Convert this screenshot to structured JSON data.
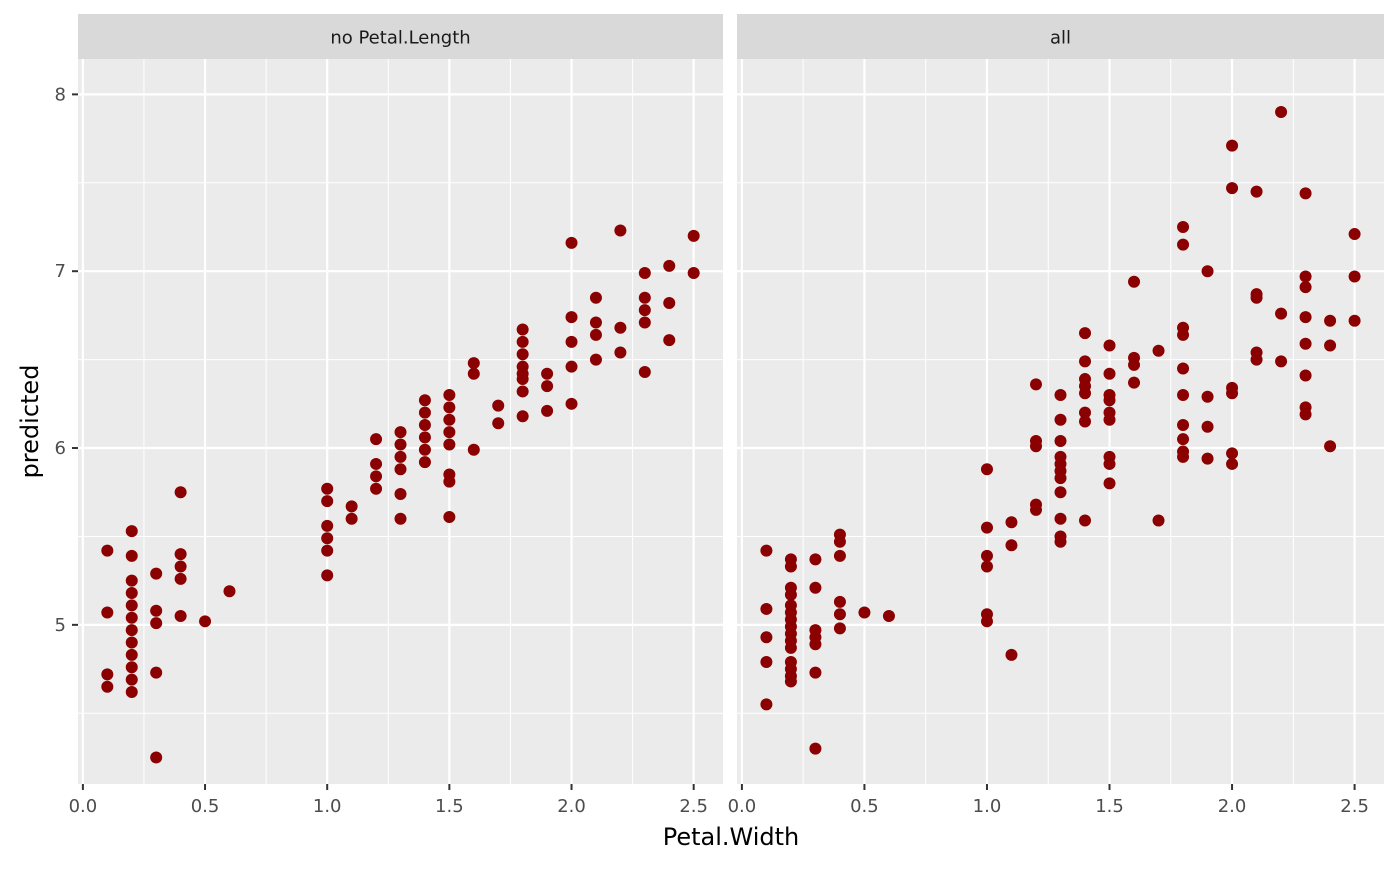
{
  "chart_data": {
    "type": "scatter",
    "xlabel": "Petal.Width",
    "ylabel": "predicted",
    "xlim": [
      -0.02,
      2.62
    ],
    "ylim": [
      4.1,
      8.2
    ],
    "x_ticks": [
      0.0,
      0.5,
      1.0,
      1.5,
      2.0,
      2.5
    ],
    "x_tick_labels": [
      "0.0",
      "0.5",
      "1.0",
      "1.5",
      "2.0",
      "2.5"
    ],
    "y_ticks": [
      5,
      6,
      7,
      8
    ],
    "y_tick_labels": [
      "5",
      "6",
      "7",
      "8"
    ],
    "grid": true,
    "point_color": "#8b0000",
    "panel_background": "#ebebeb",
    "strip_background": "#d9d9d9",
    "panels": [
      {
        "label": "no Petal.Length",
        "points": [
          {
            "x": 0.1,
            "y": 5.42
          },
          {
            "x": 0.1,
            "y": 5.07
          },
          {
            "x": 0.1,
            "y": 4.72
          },
          {
            "x": 0.1,
            "y": 4.65
          },
          {
            "x": 0.2,
            "y": 5.53
          },
          {
            "x": 0.2,
            "y": 5.39
          },
          {
            "x": 0.2,
            "y": 5.25
          },
          {
            "x": 0.2,
            "y": 5.18
          },
          {
            "x": 0.2,
            "y": 5.11
          },
          {
            "x": 0.2,
            "y": 5.04
          },
          {
            "x": 0.2,
            "y": 4.97
          },
          {
            "x": 0.2,
            "y": 4.9
          },
          {
            "x": 0.2,
            "y": 4.83
          },
          {
            "x": 0.2,
            "y": 4.76
          },
          {
            "x": 0.2,
            "y": 4.69
          },
          {
            "x": 0.2,
            "y": 4.62
          },
          {
            "x": 0.3,
            "y": 5.29
          },
          {
            "x": 0.3,
            "y": 5.08
          },
          {
            "x": 0.3,
            "y": 5.01
          },
          {
            "x": 0.3,
            "y": 4.73
          },
          {
            "x": 0.3,
            "y": 4.25
          },
          {
            "x": 0.4,
            "y": 5.75
          },
          {
            "x": 0.4,
            "y": 5.4
          },
          {
            "x": 0.4,
            "y": 5.33
          },
          {
            "x": 0.4,
            "y": 5.26
          },
          {
            "x": 0.4,
            "y": 5.05
          },
          {
            "x": 0.5,
            "y": 5.02
          },
          {
            "x": 0.6,
            "y": 5.19
          },
          {
            "x": 1.0,
            "y": 5.77
          },
          {
            "x": 1.0,
            "y": 5.7
          },
          {
            "x": 1.0,
            "y": 5.56
          },
          {
            "x": 1.0,
            "y": 5.49
          },
          {
            "x": 1.0,
            "y": 5.42
          },
          {
            "x": 1.0,
            "y": 5.28
          },
          {
            "x": 1.1,
            "y": 5.67
          },
          {
            "x": 1.1,
            "y": 5.6
          },
          {
            "x": 1.2,
            "y": 6.05
          },
          {
            "x": 1.2,
            "y": 5.91
          },
          {
            "x": 1.2,
            "y": 5.84
          },
          {
            "x": 1.2,
            "y": 5.77
          },
          {
            "x": 1.3,
            "y": 6.09
          },
          {
            "x": 1.3,
            "y": 6.02
          },
          {
            "x": 1.3,
            "y": 5.95
          },
          {
            "x": 1.3,
            "y": 5.88
          },
          {
            "x": 1.3,
            "y": 5.74
          },
          {
            "x": 1.3,
            "y": 5.6
          },
          {
            "x": 1.4,
            "y": 6.27
          },
          {
            "x": 1.4,
            "y": 6.2
          },
          {
            "x": 1.4,
            "y": 6.13
          },
          {
            "x": 1.4,
            "y": 6.06
          },
          {
            "x": 1.4,
            "y": 5.99
          },
          {
            "x": 1.4,
            "y": 5.92
          },
          {
            "x": 1.5,
            "y": 6.3
          },
          {
            "x": 1.5,
            "y": 6.23
          },
          {
            "x": 1.5,
            "y": 6.16
          },
          {
            "x": 1.5,
            "y": 6.09
          },
          {
            "x": 1.5,
            "y": 6.02
          },
          {
            "x": 1.5,
            "y": 5.85
          },
          {
            "x": 1.5,
            "y": 5.81
          },
          {
            "x": 1.5,
            "y": 5.61
          },
          {
            "x": 1.6,
            "y": 6.48
          },
          {
            "x": 1.6,
            "y": 6.42
          },
          {
            "x": 1.6,
            "y": 5.99
          },
          {
            "x": 1.7,
            "y": 6.24
          },
          {
            "x": 1.7,
            "y": 6.14
          },
          {
            "x": 1.8,
            "y": 6.67
          },
          {
            "x": 1.8,
            "y": 6.6
          },
          {
            "x": 1.8,
            "y": 6.53
          },
          {
            "x": 1.8,
            "y": 6.46
          },
          {
            "x": 1.8,
            "y": 6.42
          },
          {
            "x": 1.8,
            "y": 6.39
          },
          {
            "x": 1.8,
            "y": 6.32
          },
          {
            "x": 1.8,
            "y": 6.18
          },
          {
            "x": 1.9,
            "y": 6.42
          },
          {
            "x": 1.9,
            "y": 6.35
          },
          {
            "x": 1.9,
            "y": 6.21
          },
          {
            "x": 2.0,
            "y": 7.16
          },
          {
            "x": 2.0,
            "y": 6.74
          },
          {
            "x": 2.0,
            "y": 6.6
          },
          {
            "x": 2.0,
            "y": 6.46
          },
          {
            "x": 2.0,
            "y": 6.25
          },
          {
            "x": 2.1,
            "y": 6.85
          },
          {
            "x": 2.1,
            "y": 6.71
          },
          {
            "x": 2.1,
            "y": 6.64
          },
          {
            "x": 2.1,
            "y": 6.5
          },
          {
            "x": 2.2,
            "y": 7.23
          },
          {
            "x": 2.2,
            "y": 6.68
          },
          {
            "x": 2.2,
            "y": 6.54
          },
          {
            "x": 2.3,
            "y": 6.99
          },
          {
            "x": 2.3,
            "y": 6.85
          },
          {
            "x": 2.3,
            "y": 6.78
          },
          {
            "x": 2.3,
            "y": 6.71
          },
          {
            "x": 2.3,
            "y": 6.43
          },
          {
            "x": 2.4,
            "y": 7.03
          },
          {
            "x": 2.4,
            "y": 6.82
          },
          {
            "x": 2.4,
            "y": 6.61
          },
          {
            "x": 2.5,
            "y": 7.2
          },
          {
            "x": 2.5,
            "y": 6.99
          }
        ]
      },
      {
        "label": "all",
        "points": [
          {
            "x": 0.1,
            "y": 5.42
          },
          {
            "x": 0.1,
            "y": 5.09
          },
          {
            "x": 0.1,
            "y": 4.93
          },
          {
            "x": 0.1,
            "y": 4.79
          },
          {
            "x": 0.1,
            "y": 4.55
          },
          {
            "x": 0.2,
            "y": 5.37
          },
          {
            "x": 0.2,
            "y": 5.33
          },
          {
            "x": 0.2,
            "y": 5.21
          },
          {
            "x": 0.2,
            "y": 5.17
          },
          {
            "x": 0.2,
            "y": 5.11
          },
          {
            "x": 0.2,
            "y": 5.07
          },
          {
            "x": 0.2,
            "y": 5.03
          },
          {
            "x": 0.2,
            "y": 4.99
          },
          {
            "x": 0.2,
            "y": 4.95
          },
          {
            "x": 0.2,
            "y": 4.91
          },
          {
            "x": 0.2,
            "y": 4.87
          },
          {
            "x": 0.2,
            "y": 4.79
          },
          {
            "x": 0.2,
            "y": 4.75
          },
          {
            "x": 0.2,
            "y": 4.71
          },
          {
            "x": 0.2,
            "y": 4.68
          },
          {
            "x": 0.3,
            "y": 5.37
          },
          {
            "x": 0.3,
            "y": 5.21
          },
          {
            "x": 0.3,
            "y": 4.97
          },
          {
            "x": 0.3,
            "y": 4.93
          },
          {
            "x": 0.3,
            "y": 4.89
          },
          {
            "x": 0.3,
            "y": 4.73
          },
          {
            "x": 0.3,
            "y": 4.3
          },
          {
            "x": 0.4,
            "y": 5.51
          },
          {
            "x": 0.4,
            "y": 5.47
          },
          {
            "x": 0.4,
            "y": 5.39
          },
          {
            "x": 0.4,
            "y": 5.13
          },
          {
            "x": 0.4,
            "y": 5.06
          },
          {
            "x": 0.4,
            "y": 4.98
          },
          {
            "x": 0.5,
            "y": 5.07
          },
          {
            "x": 0.6,
            "y": 5.05
          },
          {
            "x": 1.0,
            "y": 5.88
          },
          {
            "x": 1.0,
            "y": 5.55
          },
          {
            "x": 1.0,
            "y": 5.39
          },
          {
            "x": 1.0,
            "y": 5.33
          },
          {
            "x": 1.0,
            "y": 5.06
          },
          {
            "x": 1.0,
            "y": 5.02
          },
          {
            "x": 1.1,
            "y": 5.58
          },
          {
            "x": 1.1,
            "y": 5.45
          },
          {
            "x": 1.1,
            "y": 4.83
          },
          {
            "x": 1.2,
            "y": 6.36
          },
          {
            "x": 1.2,
            "y": 6.04
          },
          {
            "x": 1.2,
            "y": 6.01
          },
          {
            "x": 1.2,
            "y": 5.68
          },
          {
            "x": 1.2,
            "y": 5.65
          },
          {
            "x": 1.3,
            "y": 6.3
          },
          {
            "x": 1.3,
            "y": 6.16
          },
          {
            "x": 1.3,
            "y": 6.04
          },
          {
            "x": 1.3,
            "y": 5.95
          },
          {
            "x": 1.3,
            "y": 5.91
          },
          {
            "x": 1.3,
            "y": 5.87
          },
          {
            "x": 1.3,
            "y": 5.83
          },
          {
            "x": 1.3,
            "y": 5.75
          },
          {
            "x": 1.3,
            "y": 5.6
          },
          {
            "x": 1.3,
            "y": 5.5
          },
          {
            "x": 1.3,
            "y": 5.47
          },
          {
            "x": 1.4,
            "y": 6.65
          },
          {
            "x": 1.4,
            "y": 6.49
          },
          {
            "x": 1.4,
            "y": 6.39
          },
          {
            "x": 1.4,
            "y": 6.35
          },
          {
            "x": 1.4,
            "y": 6.31
          },
          {
            "x": 1.4,
            "y": 6.2
          },
          {
            "x": 1.4,
            "y": 6.15
          },
          {
            "x": 1.4,
            "y": 5.59
          },
          {
            "x": 1.5,
            "y": 6.58
          },
          {
            "x": 1.5,
            "y": 6.42
          },
          {
            "x": 1.5,
            "y": 6.3
          },
          {
            "x": 1.5,
            "y": 6.27
          },
          {
            "x": 1.5,
            "y": 6.2
          },
          {
            "x": 1.5,
            "y": 6.16
          },
          {
            "x": 1.5,
            "y": 5.95
          },
          {
            "x": 1.5,
            "y": 5.91
          },
          {
            "x": 1.5,
            "y": 5.8
          },
          {
            "x": 1.6,
            "y": 6.94
          },
          {
            "x": 1.6,
            "y": 6.51
          },
          {
            "x": 1.6,
            "y": 6.47
          },
          {
            "x": 1.6,
            "y": 6.37
          },
          {
            "x": 1.7,
            "y": 6.55
          },
          {
            "x": 1.7,
            "y": 5.59
          },
          {
            "x": 1.8,
            "y": 7.25
          },
          {
            "x": 1.8,
            "y": 7.15
          },
          {
            "x": 1.8,
            "y": 6.68
          },
          {
            "x": 1.8,
            "y": 6.64
          },
          {
            "x": 1.8,
            "y": 6.45
          },
          {
            "x": 1.8,
            "y": 6.3
          },
          {
            "x": 1.8,
            "y": 6.13
          },
          {
            "x": 1.8,
            "y": 6.05
          },
          {
            "x": 1.8,
            "y": 5.98
          },
          {
            "x": 1.8,
            "y": 5.95
          },
          {
            "x": 1.9,
            "y": 7.0
          },
          {
            "x": 1.9,
            "y": 6.29
          },
          {
            "x": 1.9,
            "y": 6.12
          },
          {
            "x": 1.9,
            "y": 5.94
          },
          {
            "x": 2.0,
            "y": 7.71
          },
          {
            "x": 2.0,
            "y": 7.47
          },
          {
            "x": 2.0,
            "y": 6.34
          },
          {
            "x": 2.0,
            "y": 6.31
          },
          {
            "x": 2.0,
            "y": 5.97
          },
          {
            "x": 2.0,
            "y": 5.91
          },
          {
            "x": 2.1,
            "y": 7.45
          },
          {
            "x": 2.1,
            "y": 6.87
          },
          {
            "x": 2.1,
            "y": 6.85
          },
          {
            "x": 2.1,
            "y": 6.54
          },
          {
            "x": 2.1,
            "y": 6.5
          },
          {
            "x": 2.2,
            "y": 7.9
          },
          {
            "x": 2.2,
            "y": 6.76
          },
          {
            "x": 2.2,
            "y": 6.49
          },
          {
            "x": 2.3,
            "y": 7.44
          },
          {
            "x": 2.3,
            "y": 6.97
          },
          {
            "x": 2.3,
            "y": 6.91
          },
          {
            "x": 2.3,
            "y": 6.74
          },
          {
            "x": 2.3,
            "y": 6.59
          },
          {
            "x": 2.3,
            "y": 6.41
          },
          {
            "x": 2.3,
            "y": 6.23
          },
          {
            "x": 2.3,
            "y": 6.19
          },
          {
            "x": 2.4,
            "y": 6.72
          },
          {
            "x": 2.4,
            "y": 6.58
          },
          {
            "x": 2.4,
            "y": 6.01
          },
          {
            "x": 2.5,
            "y": 7.21
          },
          {
            "x": 2.5,
            "y": 6.97
          },
          {
            "x": 2.5,
            "y": 6.72
          }
        ]
      }
    ]
  }
}
